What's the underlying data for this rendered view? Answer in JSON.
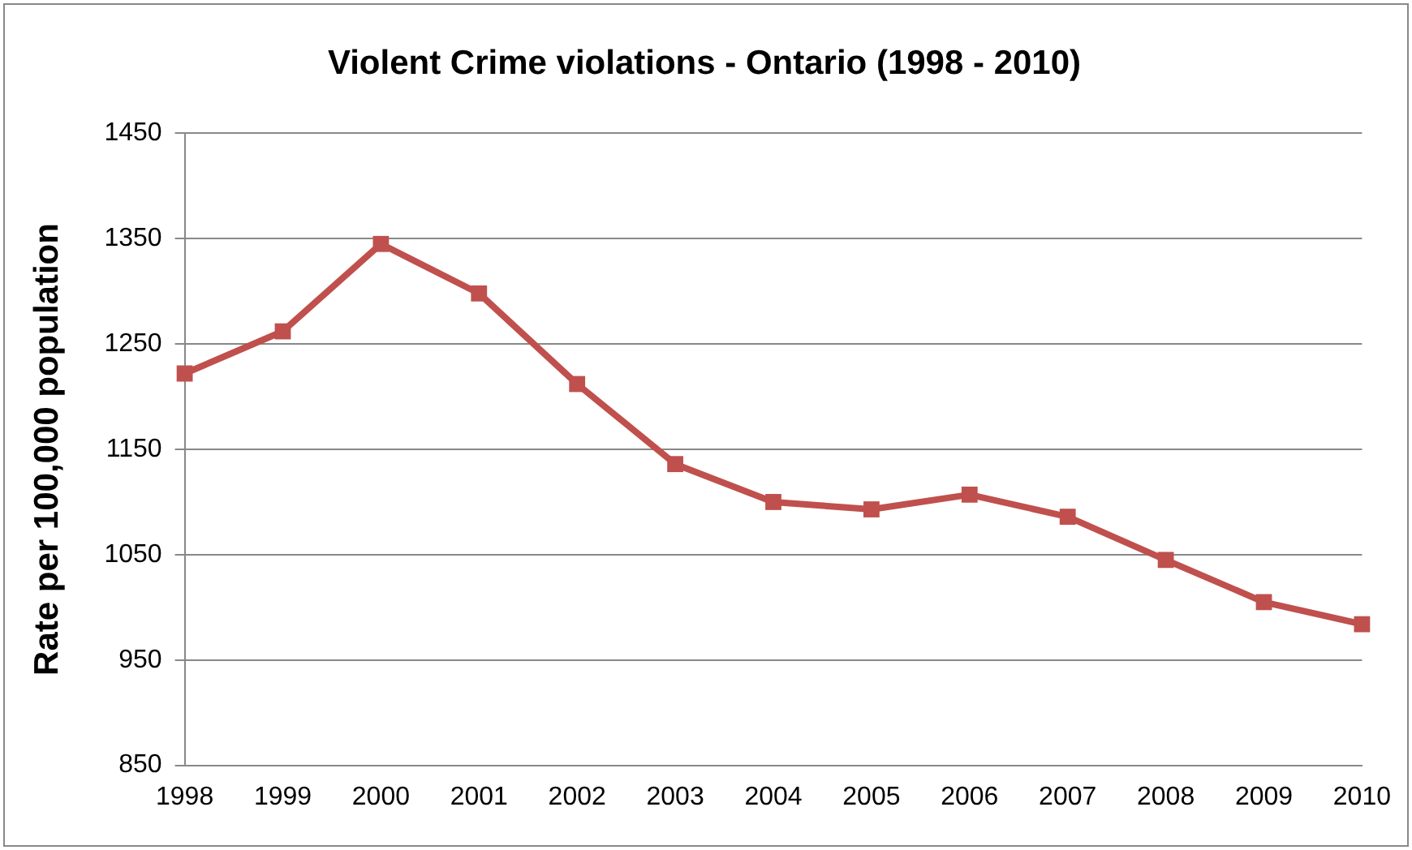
{
  "chart_data": {
    "type": "line",
    "title": "Violent Crime violations - Ontario (1998 - 2010)",
    "ylabel": "Rate per 100,000 population",
    "categories": [
      "1998",
      "1999",
      "2000",
      "2001",
      "2002",
      "2003",
      "2004",
      "2005",
      "2006",
      "2007",
      "2008",
      "2009",
      "2010"
    ],
    "series": [
      {
        "color": "#c0504d",
        "values": [
          1222,
          1262,
          1345,
          1298,
          1212,
          1136,
          1100,
          1093,
          1107,
          1086,
          1045,
          1005,
          984
        ]
      }
    ],
    "ylim": [
      850,
      1450
    ],
    "yticks": [
      850,
      950,
      1050,
      1150,
      1250,
      1350,
      1450
    ],
    "grid": "y",
    "legend": false,
    "marker": "square",
    "line_style": "solid"
  }
}
